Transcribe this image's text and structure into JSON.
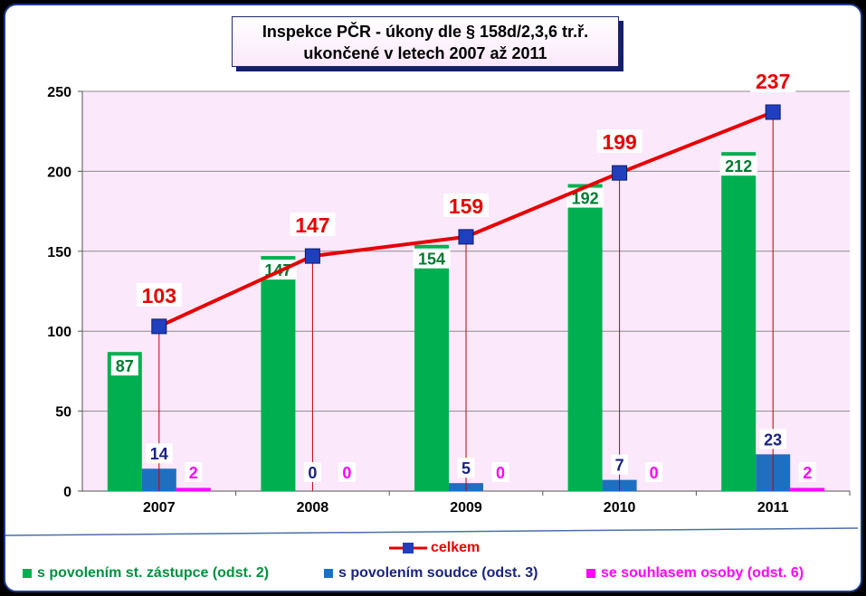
{
  "chart_data": {
    "type": "bar",
    "title_line1": "Inspekce PČR - úkony dle § 158d/2,3,6 tr.ř.",
    "title_line2": "ukončené v letech 2007 až 2011",
    "categories": [
      "2007",
      "2008",
      "2009",
      "2010",
      "2011"
    ],
    "series": [
      {
        "name": "s povolením st. zástupce (odst. 2)",
        "values": [
          87,
          147,
          154,
          192,
          212
        ],
        "color": "#00b050",
        "label_color": "#007a30"
      },
      {
        "name": "s povolením soudce (odst. 3)",
        "values": [
          14,
          0,
          5,
          7,
          23
        ],
        "color": "#1f6fc0",
        "label_color": "#1a237e"
      },
      {
        "name": "se souhlasem osoby (odst. 6)",
        "values": [
          2,
          0,
          0,
          0,
          2
        ],
        "color": "#ff00ff",
        "label_color": "#ff00ff"
      }
    ],
    "line_series": {
      "name": "celkem",
      "values": [
        103,
        147,
        159,
        199,
        237
      ],
      "color": "#e60000",
      "marker_color": "#1f3fbf"
    },
    "ylim": [
      0,
      250
    ],
    "yticks": [
      0,
      50,
      100,
      150,
      200,
      250
    ],
    "grid": true,
    "plot_background": "#fbe8fb",
    "legend_position": "bottom"
  }
}
